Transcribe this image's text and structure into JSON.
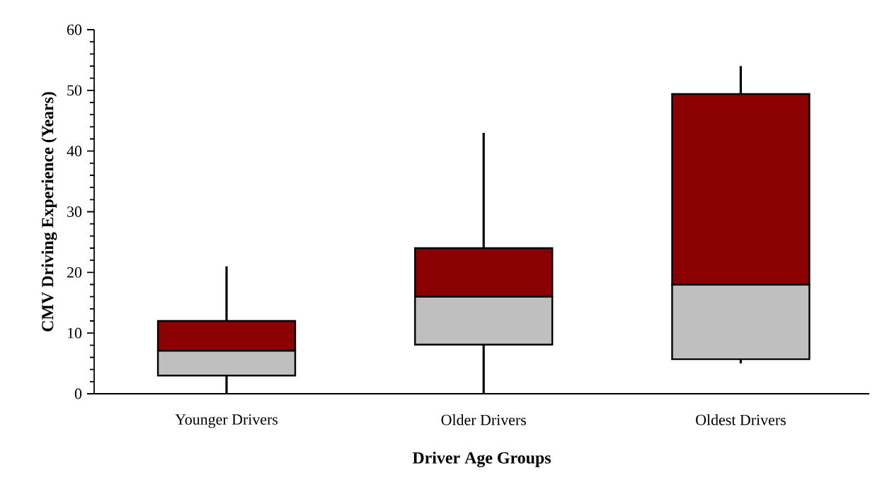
{
  "chart_data": {
    "type": "box",
    "xlabel": "Driver Age Groups",
    "ylabel": "CMV Driving Experience (Years)",
    "categories": [
      "Younger Drivers",
      "Older Drivers",
      "Oldest Drivers"
    ],
    "colors": [
      [
        "#bfbfbf",
        "#8b0000"
      ],
      [
        "#bfbfbf",
        "#8b0000"
      ],
      [
        "#bfbfbf",
        "#8b0000"
      ]
    ],
    "boxes": [
      {
        "low": 0,
        "q1": 3,
        "median": 7.1,
        "q3": 12,
        "high": 21
      },
      {
        "low": 0,
        "q1": 8.1,
        "median": 16,
        "q3": 24,
        "high": 43
      },
      {
        "low": 5,
        "q1": 5.7,
        "median": 18,
        "q3": 49.4,
        "high": 54
      }
    ],
    "ylim": [
      0,
      60
    ],
    "yticks": [
      0,
      10,
      20,
      30,
      40,
      50,
      60
    ]
  }
}
